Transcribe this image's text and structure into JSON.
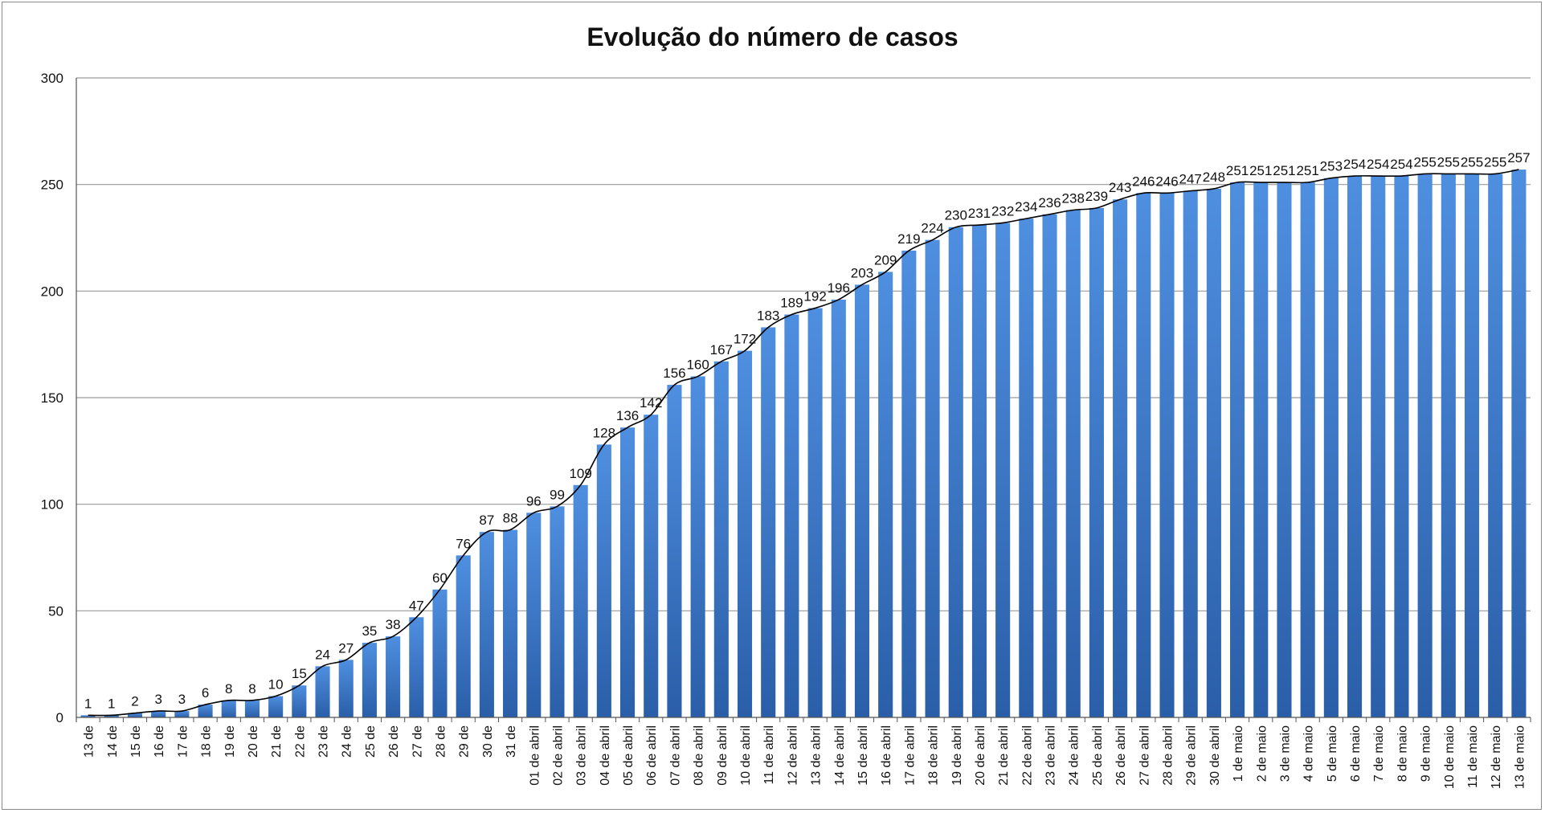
{
  "chart_data": {
    "type": "bar",
    "title": "Evolução do número de casos",
    "xlabel": "",
    "ylabel": "",
    "ylim": [
      0,
      300
    ],
    "yticks": [
      0,
      50,
      100,
      150,
      200,
      250,
      300
    ],
    "grid": true,
    "legend": "none",
    "colors": {
      "bar_top": "#4f8fe0",
      "bar_bottom": "#2a5ea8",
      "line": "#000000",
      "grid": "#9a9a9a"
    },
    "categories": [
      "13 de",
      "14 de",
      "15 de",
      "16 de",
      "17 de",
      "18 de",
      "19 de",
      "20 de",
      "21 de",
      "22 de",
      "23 de",
      "24 de",
      "25 de",
      "26 de",
      "27 de",
      "28 de",
      "29 de",
      "30 de",
      "31 de",
      "01 de abril",
      "02 de abril",
      "03 de abril",
      "04 de abril",
      "05 de abril",
      "06 de abril",
      "07 de abril",
      "08 de abril",
      "09 de abril",
      "10 de abril",
      "11 de abril",
      "12 de abril",
      "13 de abril",
      "14 de abril",
      "15 de abril",
      "16 de abril",
      "17 de abril",
      "18 de abril",
      "19 de abril",
      "20 de abril",
      "21 de abril",
      "22 de abril",
      "23 de abril",
      "24 de abril",
      "25 de abril",
      "26 de abril",
      "27 de abril",
      "28 de abril",
      "29 de abril",
      "30 de abril",
      "1 de maio",
      "2 de maio",
      "3 de maio",
      "4 de maio",
      "5 de maio",
      "6 de maio",
      "7 de maio",
      "8 de maio",
      "9 de maio",
      "10 de maio",
      "11 de maio",
      "12 de maio",
      "13 de maio"
    ],
    "values": [
      1,
      1,
      2,
      3,
      3,
      6,
      8,
      8,
      10,
      15,
      24,
      27,
      35,
      38,
      47,
      60,
      76,
      87,
      88,
      96,
      99,
      109,
      128,
      136,
      142,
      156,
      160,
      167,
      172,
      183,
      189,
      192,
      196,
      203,
      209,
      219,
      224,
      230,
      231,
      232,
      234,
      236,
      238,
      239,
      243,
      246,
      246,
      247,
      248,
      251,
      251,
      251,
      251,
      253,
      254,
      254,
      254,
      255,
      255,
      255,
      255,
      257
    ],
    "trendline": true
  }
}
